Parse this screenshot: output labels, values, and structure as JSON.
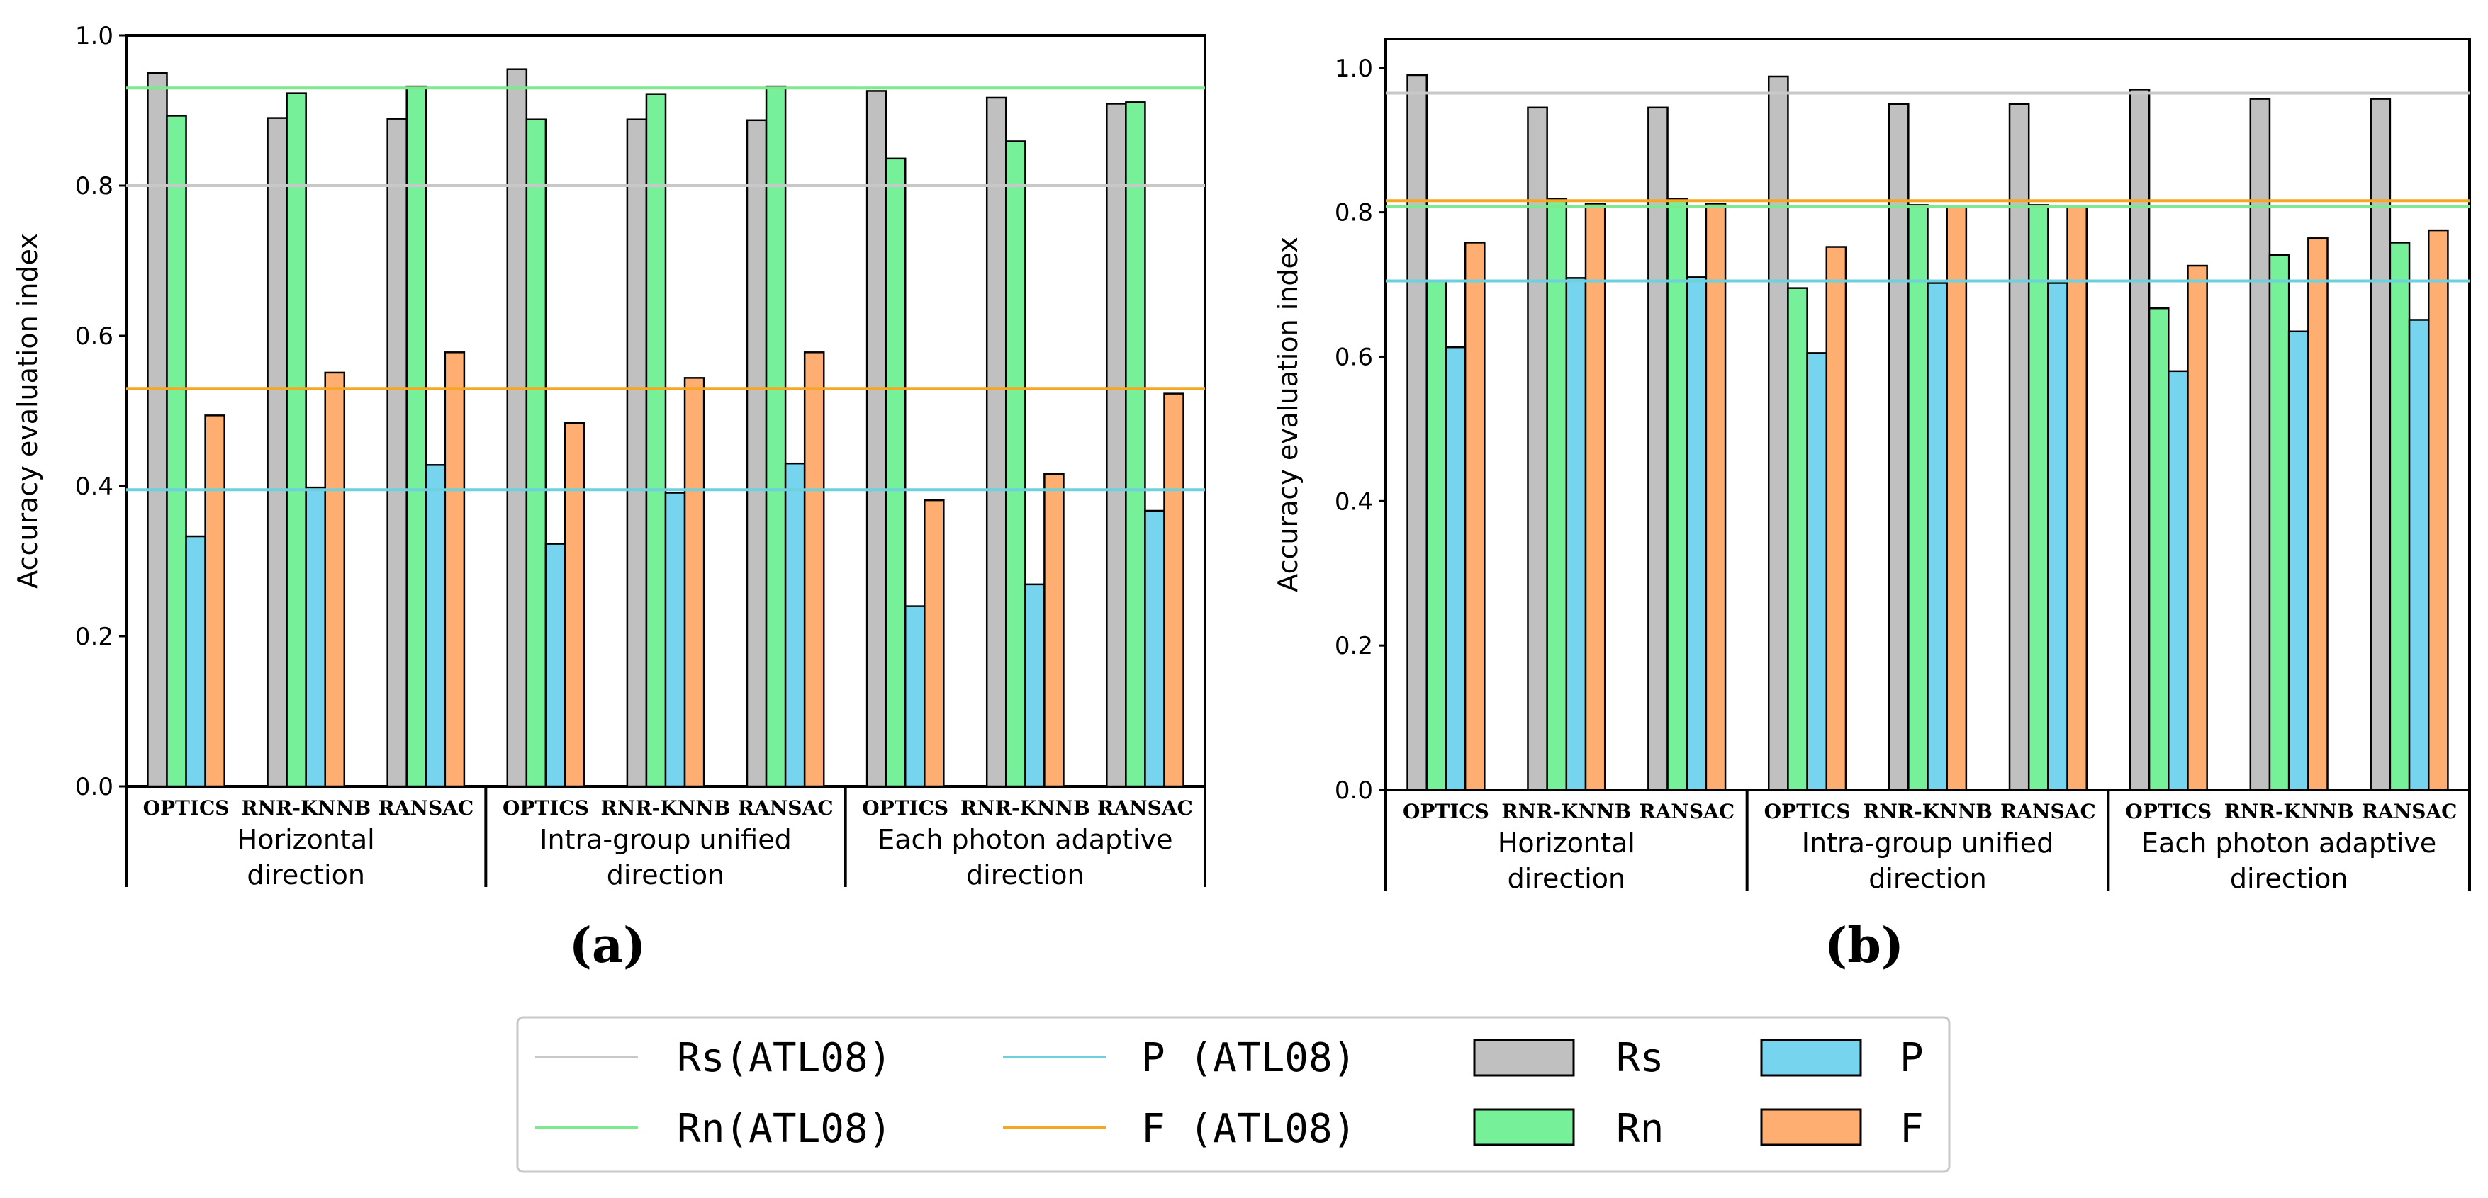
{
  "colors": {
    "Rs": "#c0c0c0",
    "Rn": "#77f09a",
    "P": "#77d4ef",
    "F": "#ffae72",
    "Rs_line": "#c8c8c8",
    "Rn_line": "#7de88e",
    "P_line": "#6cd0dd",
    "F_line": "#f5a623"
  },
  "chart_data": [
    {
      "type": "bar",
      "panel_label": "(a)",
      "ylabel": "Accuracy evaluation index",
      "ylim": [
        0,
        1.0
      ],
      "yticks": [
        "0.0",
        "0.2",
        "0.4",
        "0.6",
        "0.8",
        "1.0"
      ],
      "groups": [
        {
          "label_lines": [
            "Horizontal",
            "direction"
          ],
          "categories": [
            "OPTICS",
            "RNR-KNNB",
            "RANSAC"
          ]
        },
        {
          "label_lines": [
            "Intra-group unified",
            "direction"
          ],
          "categories": [
            "OPTICS",
            "RNR-KNNB",
            "RANSAC"
          ]
        },
        {
          "label_lines": [
            "Each photon adaptive",
            "direction"
          ],
          "categories": [
            "OPTICS",
            "RNR-KNNB",
            "RANSAC"
          ]
        }
      ],
      "series": [
        {
          "name": "Rs",
          "values": [
            0.95,
            0.89,
            0.889,
            0.955,
            0.888,
            0.887,
            0.926,
            0.917,
            0.909
          ]
        },
        {
          "name": "Rn",
          "values": [
            0.893,
            0.923,
            0.932,
            0.888,
            0.922,
            0.932,
            0.836,
            0.859,
            0.911
          ]
        },
        {
          "name": "P",
          "values": [
            0.333,
            0.398,
            0.428,
            0.323,
            0.391,
            0.43,
            0.24,
            0.269,
            0.367
          ]
        },
        {
          "name": "F",
          "values": [
            0.494,
            0.551,
            0.578,
            0.484,
            0.544,
            0.578,
            0.381,
            0.416,
            0.523
          ]
        }
      ],
      "reference_lines": [
        {
          "name": "Rs (ATL08)",
          "value": 0.8
        },
        {
          "name": "Rn (ATL08)",
          "value": 0.93
        },
        {
          "name": "P (ATL08)",
          "value": 0.395
        },
        {
          "name": "F (ATL08)",
          "value": 0.53
        }
      ]
    },
    {
      "type": "bar",
      "panel_label": "(b)",
      "ylabel": "Accuracy evaluation index",
      "ylim": [
        0,
        1.04
      ],
      "yticks": [
        "0.0",
        "0.2",
        "0.4",
        "0.6",
        "0.8",
        "1.0"
      ],
      "groups": [
        {
          "label_lines": [
            "Horizontal",
            "direction"
          ],
          "categories": [
            "OPTICS",
            "RNR-KNNB",
            "RANSAC"
          ]
        },
        {
          "label_lines": [
            "Intra-group unified",
            "direction"
          ],
          "categories": [
            "OPTICS",
            "RNR-KNNB",
            "RANSAC"
          ]
        },
        {
          "label_lines": [
            "Each photon adaptive",
            "direction"
          ],
          "categories": [
            "OPTICS",
            "RNR-KNNB",
            "RANSAC"
          ]
        }
      ],
      "series": [
        {
          "name": "Rs",
          "values": [
            0.99,
            0.945,
            0.945,
            0.988,
            0.95,
            0.95,
            0.97,
            0.957,
            0.957
          ]
        },
        {
          "name": "Rn",
          "values": [
            0.705,
            0.818,
            0.818,
            0.695,
            0.81,
            0.81,
            0.667,
            0.741,
            0.758
          ]
        },
        {
          "name": "P",
          "values": [
            0.613,
            0.709,
            0.71,
            0.605,
            0.702,
            0.702,
            0.58,
            0.635,
            0.651
          ]
        },
        {
          "name": "F",
          "values": [
            0.758,
            0.812,
            0.812,
            0.752,
            0.808,
            0.808,
            0.726,
            0.764,
            0.775
          ]
        }
      ],
      "reference_lines": [
        {
          "name": "Rs (ATL08)",
          "value": 0.965
        },
        {
          "name": "Rn (ATL08)",
          "value": 0.808
        },
        {
          "name": "P (ATL08)",
          "value": 0.705
        },
        {
          "name": "F (ATL08)",
          "value": 0.816
        }
      ]
    }
  ],
  "legend": {
    "line_items": [
      {
        "key": "Rs_line",
        "label": "Rs(ATL08)"
      },
      {
        "key": "P_line",
        "label": "P (ATL08)"
      },
      {
        "key": "Rn_line",
        "label": "Rn(ATL08)"
      },
      {
        "key": "F_line",
        "label": "F (ATL08)"
      }
    ],
    "bar_items": [
      {
        "key": "Rs",
        "label": "Rs"
      },
      {
        "key": "P",
        "label": "P"
      },
      {
        "key": "Rn",
        "label": "Rn"
      },
      {
        "key": "F",
        "label": "F"
      }
    ]
  }
}
